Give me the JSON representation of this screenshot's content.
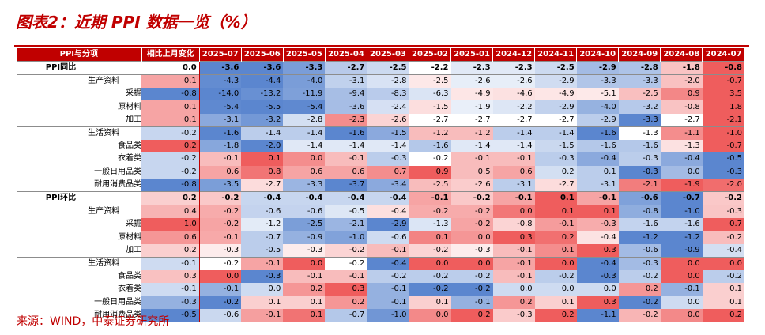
{
  "title": "图表2：近期 PPI 数据一览（%）",
  "source": "来源：WIND，中泰证券研究所",
  "table": {
    "headers": [
      "PPI与分项",
      "相比上月变化",
      "2025-07",
      "2025-06",
      "2025-05",
      "2025-04",
      "2025-03",
      "2025-02",
      "2025-01",
      "2024-12",
      "2024-11",
      "2024-10",
      "2024-09",
      "2024-08",
      "2024-07"
    ],
    "rows": [
      {
        "label": "PPI同比",
        "bold": true,
        "change": "0.0",
        "values": [
          "-3.6",
          "-3.6",
          "-3.3",
          "-2.7",
          "-2.5",
          "-2.2",
          "-2.3",
          "-2.3",
          "-2.5",
          "-2.9",
          "-2.8",
          "-1.8",
          "-0.8"
        ]
      },
      {
        "label": "生产资料",
        "indent": 1,
        "change": "0.1",
        "values": [
          "-4.3",
          "-4.4",
          "-4.0",
          "-3.1",
          "-2.8",
          "-2.5",
          "-2.6",
          "-2.6",
          "-2.9",
          "-3.3",
          "-3.3",
          "-2.0",
          "-0.7"
        ]
      },
      {
        "label": "采掘",
        "indent": 2,
        "change": "-0.8",
        "values": [
          "-14.0",
          "-13.2",
          "-11.9",
          "-9.4",
          "-8.3",
          "-6.3",
          "-4.9",
          "-4.6",
          "-4.9",
          "-5.1",
          "-2.5",
          "0.9",
          "3.5"
        ]
      },
      {
        "label": "原材料",
        "indent": 2,
        "change": "0.1",
        "values": [
          "-5.4",
          "-5.5",
          "-5.4",
          "-3.6",
          "-2.4",
          "-1.5",
          "-1.9",
          "-2.2",
          "-2.9",
          "-4.0",
          "-3.2",
          "-0.8",
          "1.8"
        ]
      },
      {
        "label": "加工",
        "indent": 2,
        "change": "0.1",
        "values": [
          "-3.1",
          "-3.2",
          "-2.8",
          "-2.3",
          "-2.6",
          "-2.7",
          "-2.7",
          "-2.7",
          "-2.7",
          "-2.9",
          "-3.3",
          "-2.7",
          "-2.1"
        ]
      },
      {
        "label": "生活资料",
        "indent": 1,
        "change": "-0.2",
        "values": [
          "-1.6",
          "-1.4",
          "-1.4",
          "-1.6",
          "-1.5",
          "-1.2",
          "-1.2",
          "-1.4",
          "-1.4",
          "-1.6",
          "-1.3",
          "-1.1",
          "-1.0"
        ]
      },
      {
        "label": "食品类",
        "indent": 2,
        "change": "0.2",
        "values": [
          "-1.8",
          "-2.0",
          "-1.4",
          "-1.4",
          "-1.4",
          "-1.6",
          "-1.4",
          "-1.4",
          "-1.5",
          "-1.6",
          "-1.6",
          "-1.3",
          "-0.7"
        ]
      },
      {
        "label": "衣着类",
        "indent": 2,
        "change": "-0.2",
        "values": [
          "-0.1",
          "0.1",
          "0.0",
          "-0.1",
          "-0.3",
          "-0.2",
          "-0.1",
          "-0.1",
          "-0.3",
          "-0.4",
          "-0.3",
          "-0.4",
          "-0.5"
        ]
      },
      {
        "label": "一般日用品类",
        "indent": 2,
        "change": "-0.2",
        "values": [
          "0.6",
          "0.8",
          "0.6",
          "0.6",
          "0.7",
          "0.9",
          "0.5",
          "0.6",
          "0.2",
          "0.1",
          "-0.3",
          "0.0",
          "-0.3"
        ]
      },
      {
        "label": "耐用消费品类",
        "indent": 2,
        "change": "-0.8",
        "values": [
          "-3.5",
          "-2.7",
          "-3.3",
          "-3.7",
          "-3.4",
          "-2.5",
          "-2.6",
          "-3.1",
          "-2.7",
          "-3.1",
          "-2.1",
          "-1.9",
          "-2.0"
        ]
      },
      {
        "label": "PPI环比",
        "bold": true,
        "change": "0.2",
        "values": [
          "-0.2",
          "-0.4",
          "-0.4",
          "-0.4",
          "-0.4",
          "-0.1",
          "-0.2",
          "-0.1",
          "0.1",
          "-0.1",
          "-0.6",
          "-0.7",
          "-0.2"
        ]
      },
      {
        "label": "生产资料",
        "indent": 1,
        "change": "0.4",
        "values": [
          "-0.2",
          "-0.6",
          "-0.6",
          "-0.5",
          "-0.4",
          "-0.2",
          "-0.2",
          "0.0",
          "0.1",
          "0.1",
          "-0.8",
          "-1.0",
          "-0.3"
        ]
      },
      {
        "label": "采掘",
        "indent": 2,
        "change": "1.0",
        "values": [
          "-0.2",
          "-1.2",
          "-2.5",
          "-2.1",
          "-2.9",
          "-1.3",
          "-0.2",
          "-0.8",
          "-0.1",
          "-0.3",
          "-1.6",
          "-1.6",
          "0.7"
        ]
      },
      {
        "label": "原材料",
        "indent": 2,
        "change": "0.6",
        "values": [
          "-0.1",
          "-0.7",
          "-0.9",
          "-1.0",
          "-0.6",
          "0.1",
          "0.0",
          "0.3",
          "0.2",
          "-0.4",
          "-1.2",
          "-1.2",
          "-0.2"
        ]
      },
      {
        "label": "加工",
        "indent": 2,
        "change": "0.2",
        "values": [
          "-0.3",
          "-0.5",
          "-0.3",
          "-0.2",
          "-0.1",
          "-0.2",
          "-0.3",
          "-0.1",
          "0.1",
          "0.3",
          "-0.6",
          "-0.9",
          "-0.4"
        ]
      },
      {
        "label": "生活资料",
        "indent": 1,
        "change": "-0.1",
        "values": [
          "-0.2",
          "-0.1",
          "0.0",
          "-0.2",
          "-0.4",
          "0.0",
          "0.0",
          "-0.1",
          "0.0",
          "-0.4",
          "-0.3",
          "0.0",
          "0.0"
        ]
      },
      {
        "label": "食品类",
        "indent": 2,
        "change": "0.3",
        "values": [
          "0.0",
          "-0.3",
          "-0.1",
          "-0.1",
          "-0.2",
          "-0.2",
          "-0.2",
          "-0.1",
          "-0.2",
          "-0.3",
          "-0.2",
          "0.0",
          "-0.2"
        ]
      },
      {
        "label": "衣着类",
        "indent": 2,
        "change": "-0.1",
        "values": [
          "-0.1",
          "0.0",
          "0.2",
          "0.3",
          "-0.1",
          "-0.2",
          "-0.2",
          "0.0",
          "0.0",
          "0.0",
          "0.2",
          "-0.1",
          "0.1"
        ]
      },
      {
        "label": "一般日用品类",
        "indent": 2,
        "change": "-0.3",
        "values": [
          "-0.2",
          "0.1",
          "0.1",
          "0.2",
          "-0.1",
          "0.1",
          "-0.1",
          "0.2",
          "0.1",
          "0.3",
          "-0.2",
          "0.0",
          "0.1"
        ]
      },
      {
        "label": "耐用消费品类",
        "indent": 2,
        "change": "-0.5",
        "values": [
          "-0.6",
          "-0.1",
          "0.1",
          "-0.7",
          "-1.0",
          "0.0",
          "0.2",
          "-0.3",
          "0.2",
          "-1.1",
          "-0.2",
          "0.0",
          "0.2"
        ]
      }
    ]
  },
  "colors": {
    "brand": "#c00000",
    "header_text": "#ffffff",
    "negative": "#5b86cf",
    "positive": "#ef5d5d",
    "neutral": "#ffffff"
  }
}
